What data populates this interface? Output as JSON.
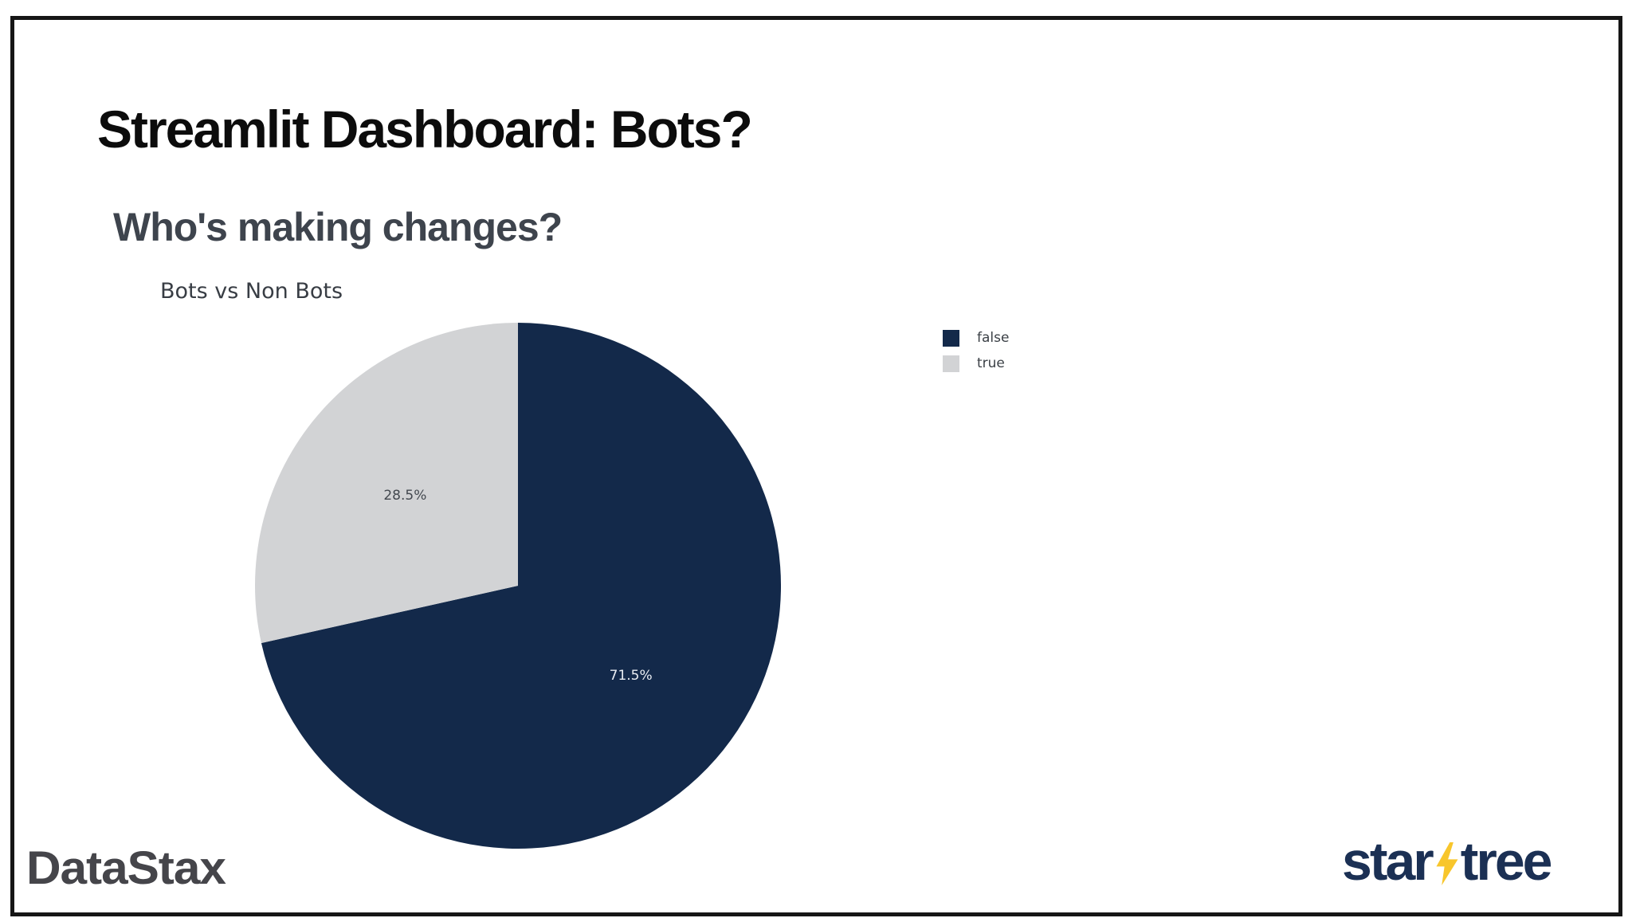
{
  "slide": {
    "title": "Streamlit Dashboard: Bots?",
    "subtitle": "Who's making changes?"
  },
  "chart_data": {
    "type": "pie",
    "title": "Bots vs Non Bots",
    "categories": [
      "false",
      "true"
    ],
    "values": [
      71.5,
      28.5
    ],
    "slices": [
      {
        "label": "false",
        "value": 71.5,
        "pct_label": "71.5%",
        "color": "#13294a",
        "text_color": "#e9edf3"
      },
      {
        "label": "true",
        "value": 28.5,
        "pct_label": "28.5%",
        "color": "#d2d3d5",
        "text_color": "#43484f"
      }
    ],
    "start_angle": "12-oclock",
    "direction": "clockwise",
    "legend_position": "upper-right",
    "pct_distance": 0.55
  },
  "branding": {
    "datastax": {
      "text": "DataStax",
      "color": "#45454a"
    },
    "startree": {
      "left": "star",
      "right": "tree",
      "text_color": "#1b3054",
      "bolt_color": "#f8c62c"
    }
  }
}
